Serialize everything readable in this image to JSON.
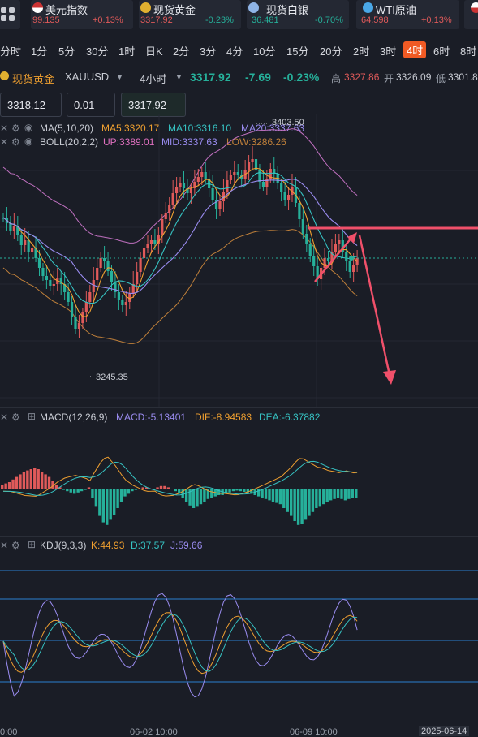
{
  "tickers": [
    {
      "name": "美元指数",
      "price": "99.135",
      "change": "+0.13%",
      "dir": "up",
      "icon": "us-flag-icon"
    },
    {
      "name": "现货黄金",
      "price": "3317.92",
      "change": "-0.23%",
      "dir": "dn",
      "icon": "gold-icon"
    },
    {
      "name": "现货白银",
      "price": "36.481",
      "change": "-0.70%",
      "dir": "dn",
      "icon": "silver-icon"
    },
    {
      "name": "WTI原油",
      "price": "64.598",
      "change": "+0.13%",
      "dir": "up",
      "icon": "oil-icon"
    }
  ],
  "timeframes": [
    "分时",
    "1分",
    "5分",
    "30分",
    "1时",
    "日K",
    "2分",
    "3分",
    "4分",
    "10分",
    "15分",
    "20分",
    "2时",
    "3时",
    "4时",
    "6时",
    "8时"
  ],
  "selected_timeframe": "4时",
  "symbol": {
    "name": "现货黄金",
    "code": "XAUUSD",
    "period": "4小时",
    "last": "3317.92",
    "change": "-7.69",
    "change_pct": "-0.23%",
    "high_label": "高",
    "high": "3327.86",
    "open_label": "开",
    "open": "3326.09",
    "low_label": "低",
    "low": "3301.8"
  },
  "order": {
    "bid": "3318.12",
    "lot": "0.01",
    "ask": "3317.92"
  },
  "indicators": {
    "ma": {
      "label": "MA(5,10,20)",
      "ma5": "MA5:3320.17",
      "ma10": "MA10:3316.10",
      "ma20": "MA20:3337.63"
    },
    "boll": {
      "label": "BOLL(20,2,2)",
      "up": "UP:3389.01",
      "mid": "MID:3337.63",
      "low": "LOW:3286.26"
    },
    "macd": {
      "label": "MACD(12,26,9)",
      "macd": "MACD:-5.13401",
      "dif": "DIF:-8.94583",
      "dea": "DEA:-6.37882"
    },
    "kdj": {
      "label": "KDJ(9,3,3)",
      "k": "K:44.93",
      "d": "D:37.57",
      "j": "J:59.66"
    }
  },
  "annotations": {
    "high_mark": "3403.50",
    "low_mark": "3245.35"
  },
  "x_axis": {
    "left": "0:00",
    "mid": "06-02 10:00",
    "right_mid": "06-09 10:00",
    "right": "2025-06-14"
  },
  "colors": {
    "up": "#e05a5a",
    "down": "#26b09a",
    "accent": "#f05a24",
    "ma5": "#f0a030",
    "ma10": "#36c2c2",
    "ma20": "#9a8cf0"
  }
}
